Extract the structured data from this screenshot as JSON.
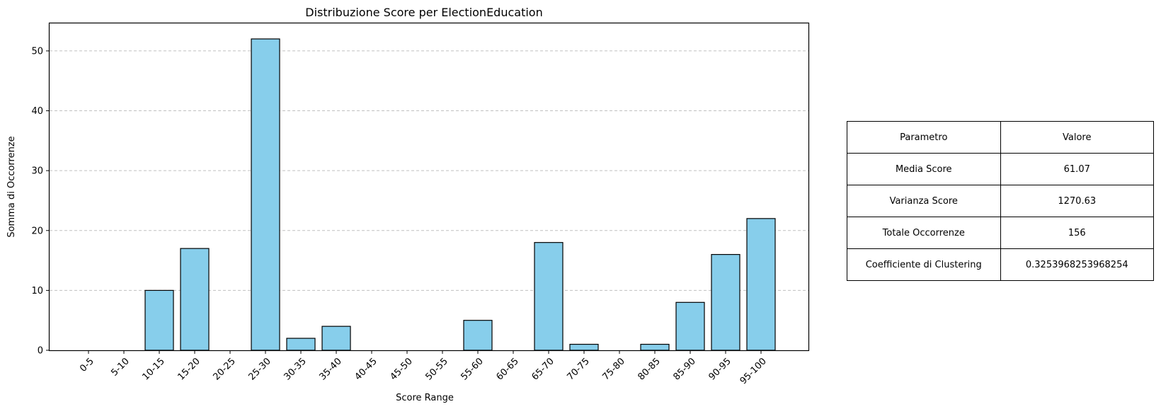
{
  "chart_data": {
    "type": "bar",
    "title": "Distribuzione Score per ElectionEducation",
    "xlabel": "Score Range",
    "ylabel": "Somma di Occorrenze",
    "categories": [
      "0-5",
      "5-10",
      "10-15",
      "15-20",
      "20-25",
      "25-30",
      "30-35",
      "35-40",
      "40-45",
      "45-50",
      "50-55",
      "55-60",
      "60-65",
      "65-70",
      "70-75",
      "75-80",
      "80-85",
      "85-90",
      "90-95",
      "95-100"
    ],
    "values": [
      0,
      0,
      10,
      17,
      0,
      52,
      2,
      4,
      0,
      0,
      0,
      5,
      0,
      18,
      1,
      0,
      1,
      8,
      16,
      22
    ],
    "ylim": [
      0,
      54.6
    ],
    "yticks": [
      0,
      10,
      20,
      30,
      40,
      50
    ],
    "grid": "y-dashed",
    "bar_color": "#87CEEB",
    "edge_color": "#000000"
  },
  "table": {
    "header": [
      "Parametro",
      "Valore"
    ],
    "rows": [
      [
        "Media Score",
        "61.07"
      ],
      [
        "Varianza Score",
        "1270.63"
      ],
      [
        "Totale Occorrenze",
        "156"
      ],
      [
        "Coefficiente di Clustering",
        "0.3253968253968254"
      ]
    ]
  }
}
